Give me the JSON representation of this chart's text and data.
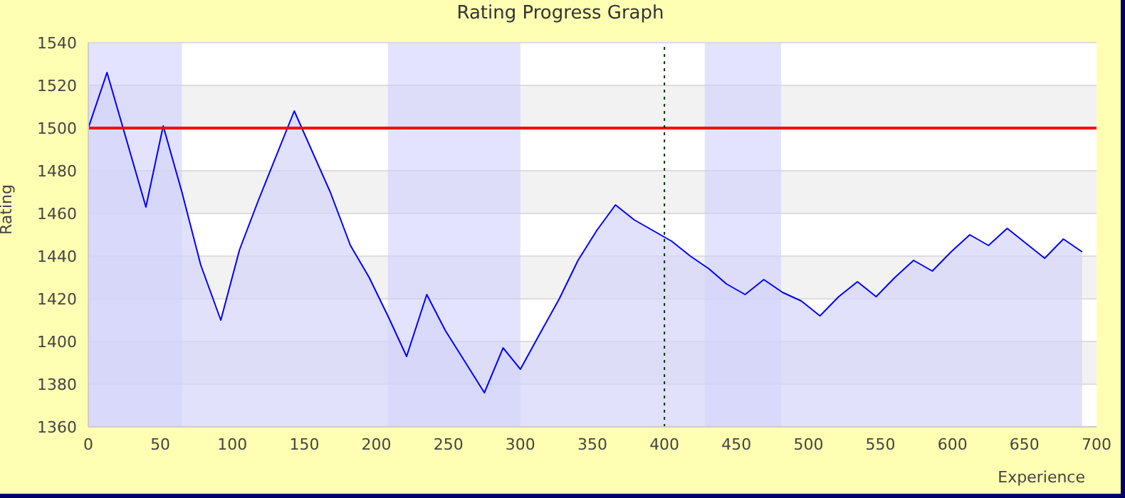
{
  "chart_data": {
    "type": "area",
    "title": "Rating Progress Graph",
    "xlabel": "Experience",
    "ylabel": "Rating",
    "x": [
      0,
      13,
      40,
      52,
      65,
      78,
      92,
      105,
      118,
      143,
      168,
      182,
      195,
      208,
      221,
      235,
      248,
      262,
      275,
      288,
      300,
      313,
      327,
      340,
      353,
      366,
      379,
      392,
      405,
      418,
      431,
      443,
      456,
      469,
      482,
      495,
      508,
      521,
      534,
      547,
      560,
      573,
      586,
      599,
      612,
      625,
      638,
      651,
      664,
      677,
      690
    ],
    "series": [
      {
        "color": "#0000ff",
        "values": [
          1500,
          1526,
          1463,
          1501,
          1470,
          1436,
          1410,
          1443,
          1466,
          1508,
          1470,
          1445,
          1430,
          1412,
          1393,
          1422,
          1405,
          1390,
          1376,
          1397,
          1387,
          1403,
          1420,
          1438,
          1452,
          1464,
          1457,
          1452,
          1447,
          1440,
          1434,
          1427,
          1422,
          1429,
          1423,
          1419,
          1412,
          1421,
          1428,
          1421,
          1430,
          1438,
          1433,
          1442,
          1450,
          1445,
          1453,
          1446,
          1439,
          1448,
          1442
        ]
      }
    ],
    "xlim": [
      0,
      700
    ],
    "xticks": [
      0,
      50,
      100,
      150,
      200,
      250,
      300,
      350,
      400,
      450,
      500,
      550,
      600,
      650,
      700
    ],
    "ylim": [
      1360,
      1540
    ],
    "yticks": [
      1360,
      1380,
      1400,
      1420,
      1440,
      1460,
      1480,
      1500,
      1520,
      1540
    ],
    "ref_lines": [
      {
        "axis": "y",
        "value": 1500,
        "color": "#ff0000",
        "line_style": "solid"
      },
      {
        "axis": "x",
        "value": 400,
        "color": "#003300",
        "line_style": "dotted"
      }
    ],
    "bands": [
      {
        "axis": "x",
        "from": 0,
        "to": 65,
        "color": "#ccccff"
      },
      {
        "axis": "x",
        "from": 208,
        "to": 300,
        "color": "#ccccff"
      },
      {
        "axis": "x",
        "from": 428,
        "to": 481,
        "color": "#ccccff"
      }
    ],
    "grid": "y",
    "marker": "none",
    "line_style": "solid",
    "legend": false
  }
}
